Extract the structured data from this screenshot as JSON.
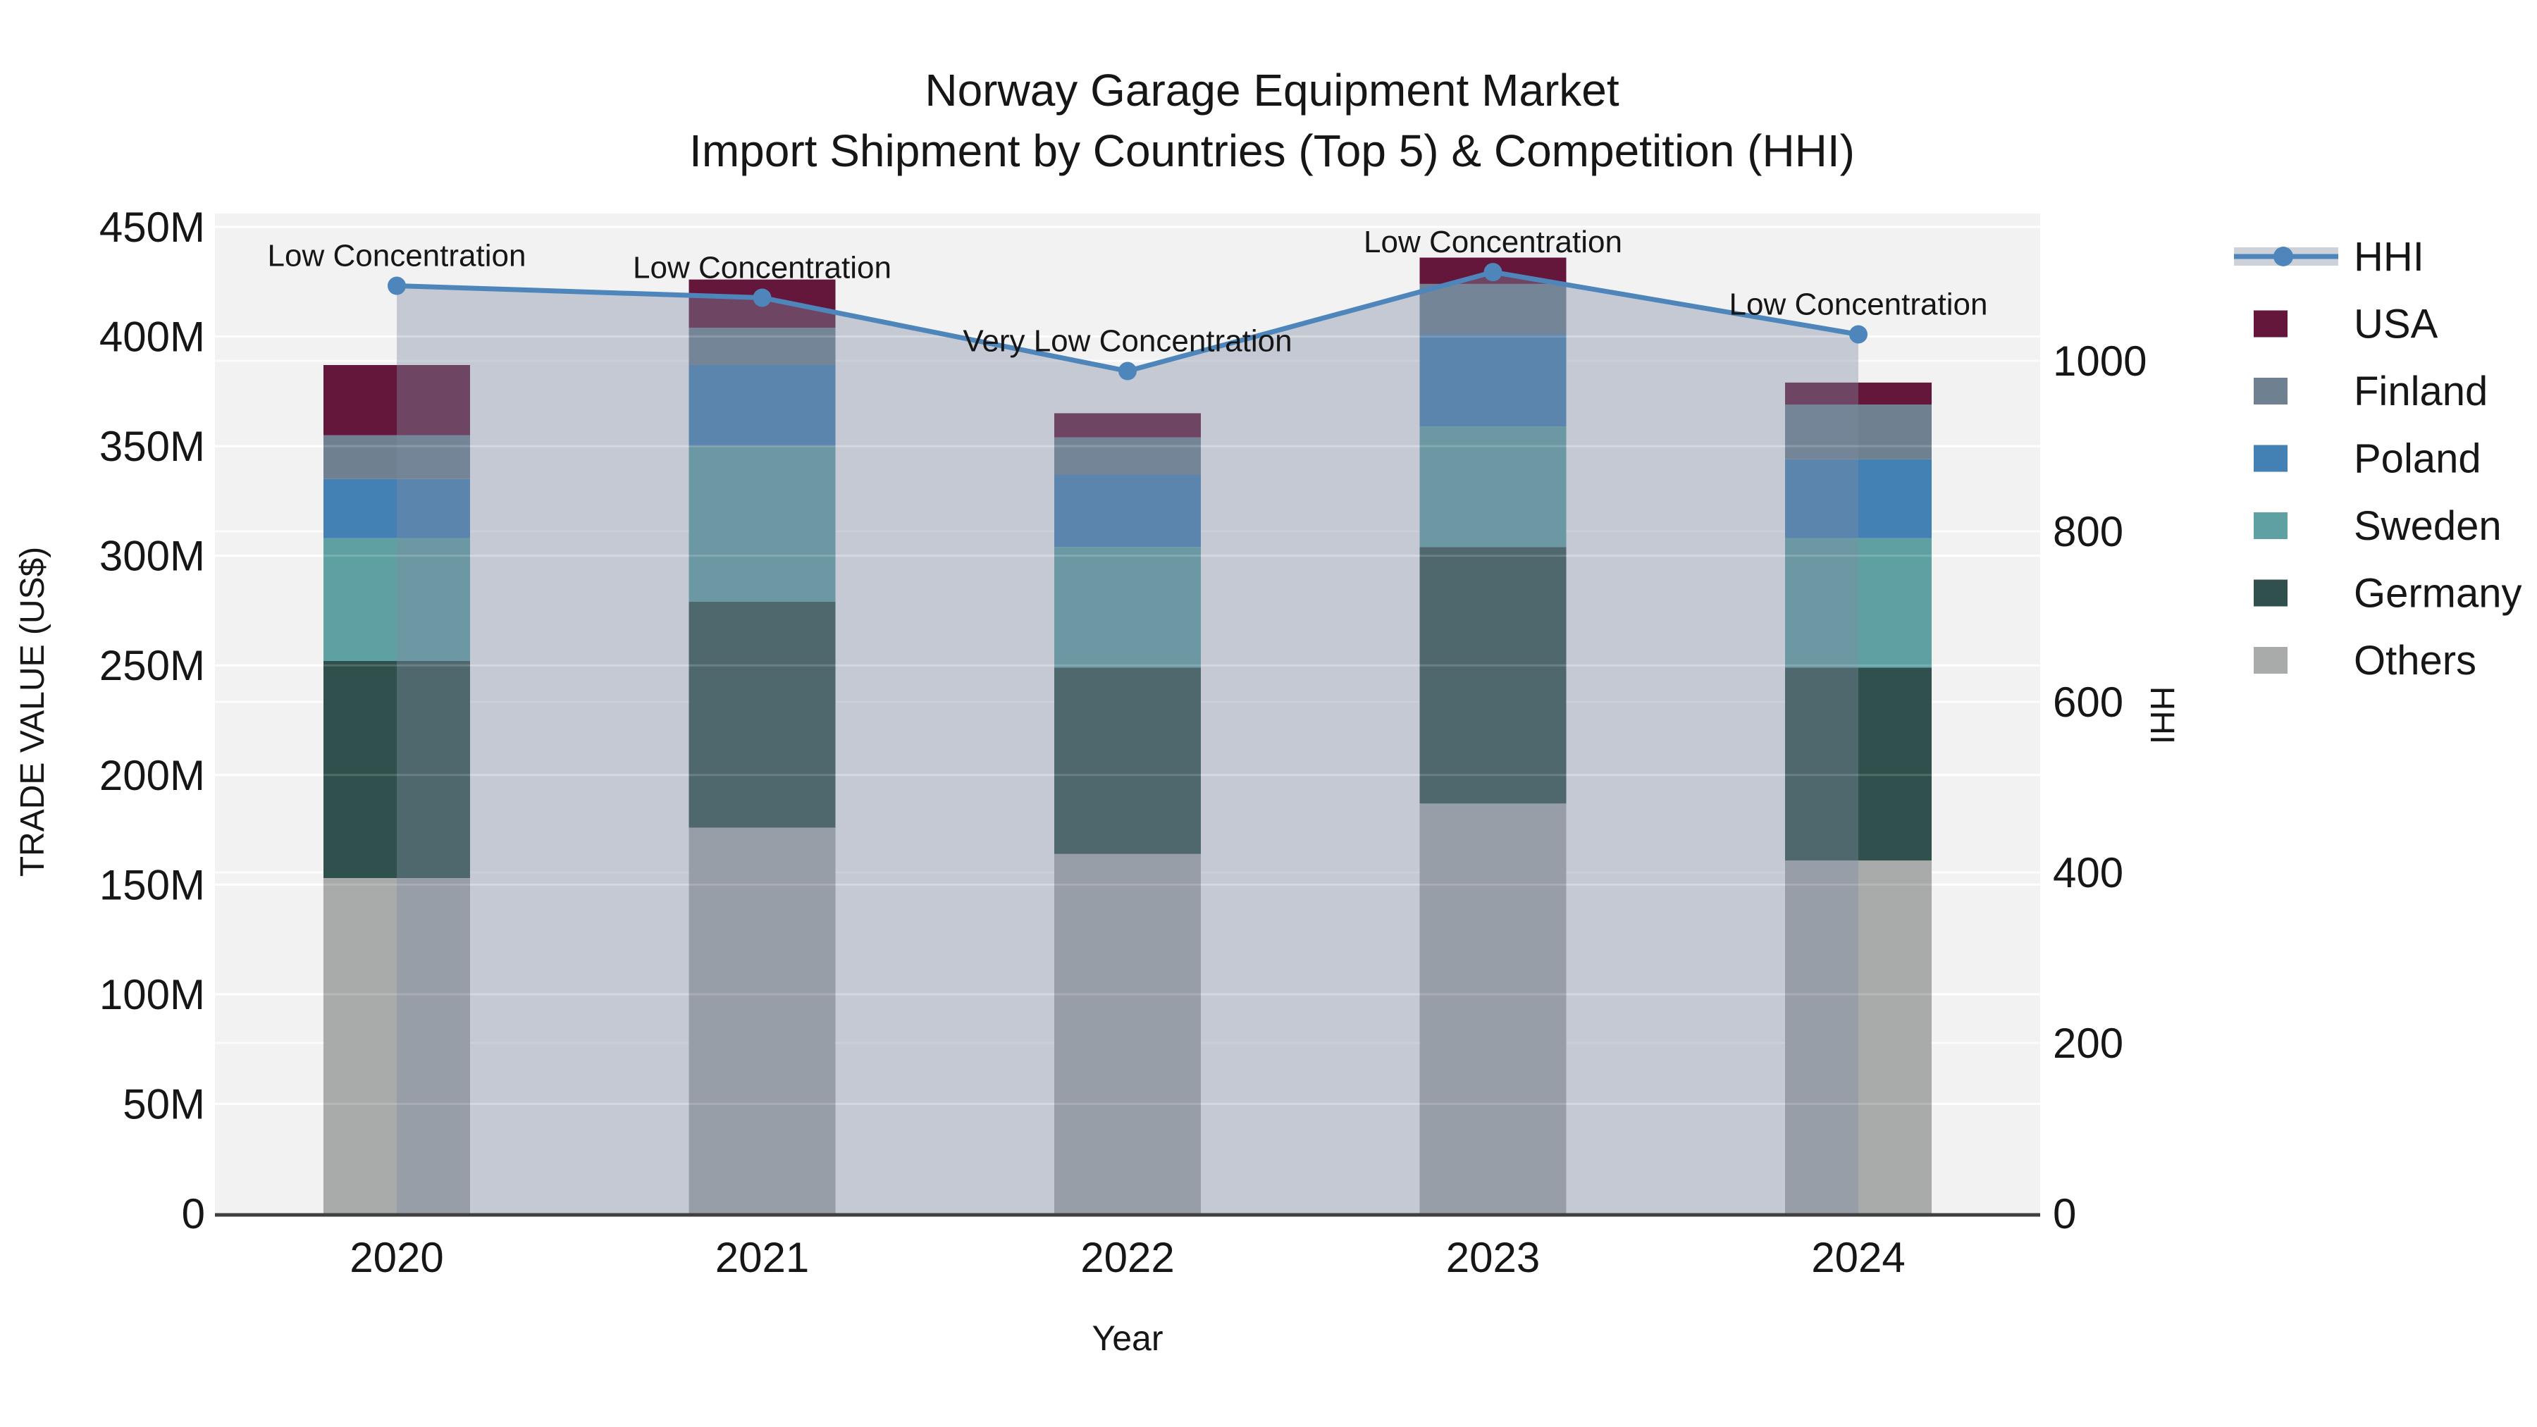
{
  "chart_data": {
    "type": "bar+line combo (stacked bars with HHI area line)",
    "title_line1": "Norway Garage Equipment Market",
    "title_line2": "Import Shipment by Countries (Top 5) & Competition (HHI)",
    "xlabel": "Year",
    "ylabel_left": "TRADE VALUE (US$)",
    "ylabel_right": "HHI",
    "categories": [
      "2020",
      "2021",
      "2022",
      "2023",
      "2024"
    ],
    "bar_unit": "million US$",
    "bar_series": [
      {
        "name": "Others",
        "color": "#a9abaa",
        "values": [
          153,
          176,
          164,
          187,
          161
        ]
      },
      {
        "name": "Germany",
        "color": "#2f504c",
        "values": [
          99,
          103,
          85,
          117,
          88
        ]
      },
      {
        "name": "Sweden",
        "color": "#5fa1a3",
        "values": [
          56,
          71,
          55,
          55,
          59
        ]
      },
      {
        "name": "Poland",
        "color": "#4381b4",
        "values": [
          27,
          37,
          33,
          42,
          36
        ]
      },
      {
        "name": "Finland",
        "color": "#6f8091",
        "values": [
          20,
          17,
          17,
          23,
          25
        ]
      },
      {
        "name": "USA",
        "color": "#65163b",
        "values": [
          32,
          22,
          11,
          12,
          10
        ]
      }
    ],
    "bar_totals": [
      387,
      426,
      365,
      436,
      379
    ],
    "line_series": {
      "name": "HHI",
      "color": "#4e86bb",
      "fill_color": "rgba(128,140,163,0.4)",
      "values": [
        1088,
        1074,
        988,
        1104,
        1031
      ]
    },
    "annotations": [
      "Low Concentration",
      "Low Concentration",
      "Very Low Concentration",
      "Low Concentration",
      "Low Concentration"
    ],
    "y_left": {
      "ticks": [
        "0",
        "50M",
        "100M",
        "150M",
        "200M",
        "250M",
        "300M",
        "350M",
        "400M",
        "450M"
      ],
      "tick_values": [
        0,
        50,
        100,
        150,
        200,
        250,
        300,
        350,
        400,
        450
      ],
      "range": [
        0,
        456
      ]
    },
    "y_right": {
      "ticks": [
        "0",
        "200",
        "400",
        "600",
        "800",
        "1000"
      ],
      "tick_values": [
        0,
        200,
        400,
        600,
        800,
        1000
      ],
      "range": [
        0,
        1173
      ]
    },
    "grid": "white gridlines on light gray plot background",
    "plot_bg": "#f2f2f3",
    "axis_line_color": "#3f3f3f",
    "legend": {
      "position": "right",
      "items": [
        {
          "label": "HHI",
          "type": "line",
          "color": "#4e86bb",
          "band_color": "#ccd1da"
        },
        {
          "label": "USA",
          "type": "swatch",
          "color": "#65163b"
        },
        {
          "label": "Finland",
          "type": "swatch",
          "color": "#6f8091"
        },
        {
          "label": "Poland",
          "type": "swatch",
          "color": "#4381b4"
        },
        {
          "label": "Sweden",
          "type": "swatch",
          "color": "#5fa1a3"
        },
        {
          "label": "Germany",
          "type": "swatch",
          "color": "#2f504c"
        },
        {
          "label": "Others",
          "type": "swatch",
          "color": "#a9abaa"
        }
      ]
    }
  }
}
